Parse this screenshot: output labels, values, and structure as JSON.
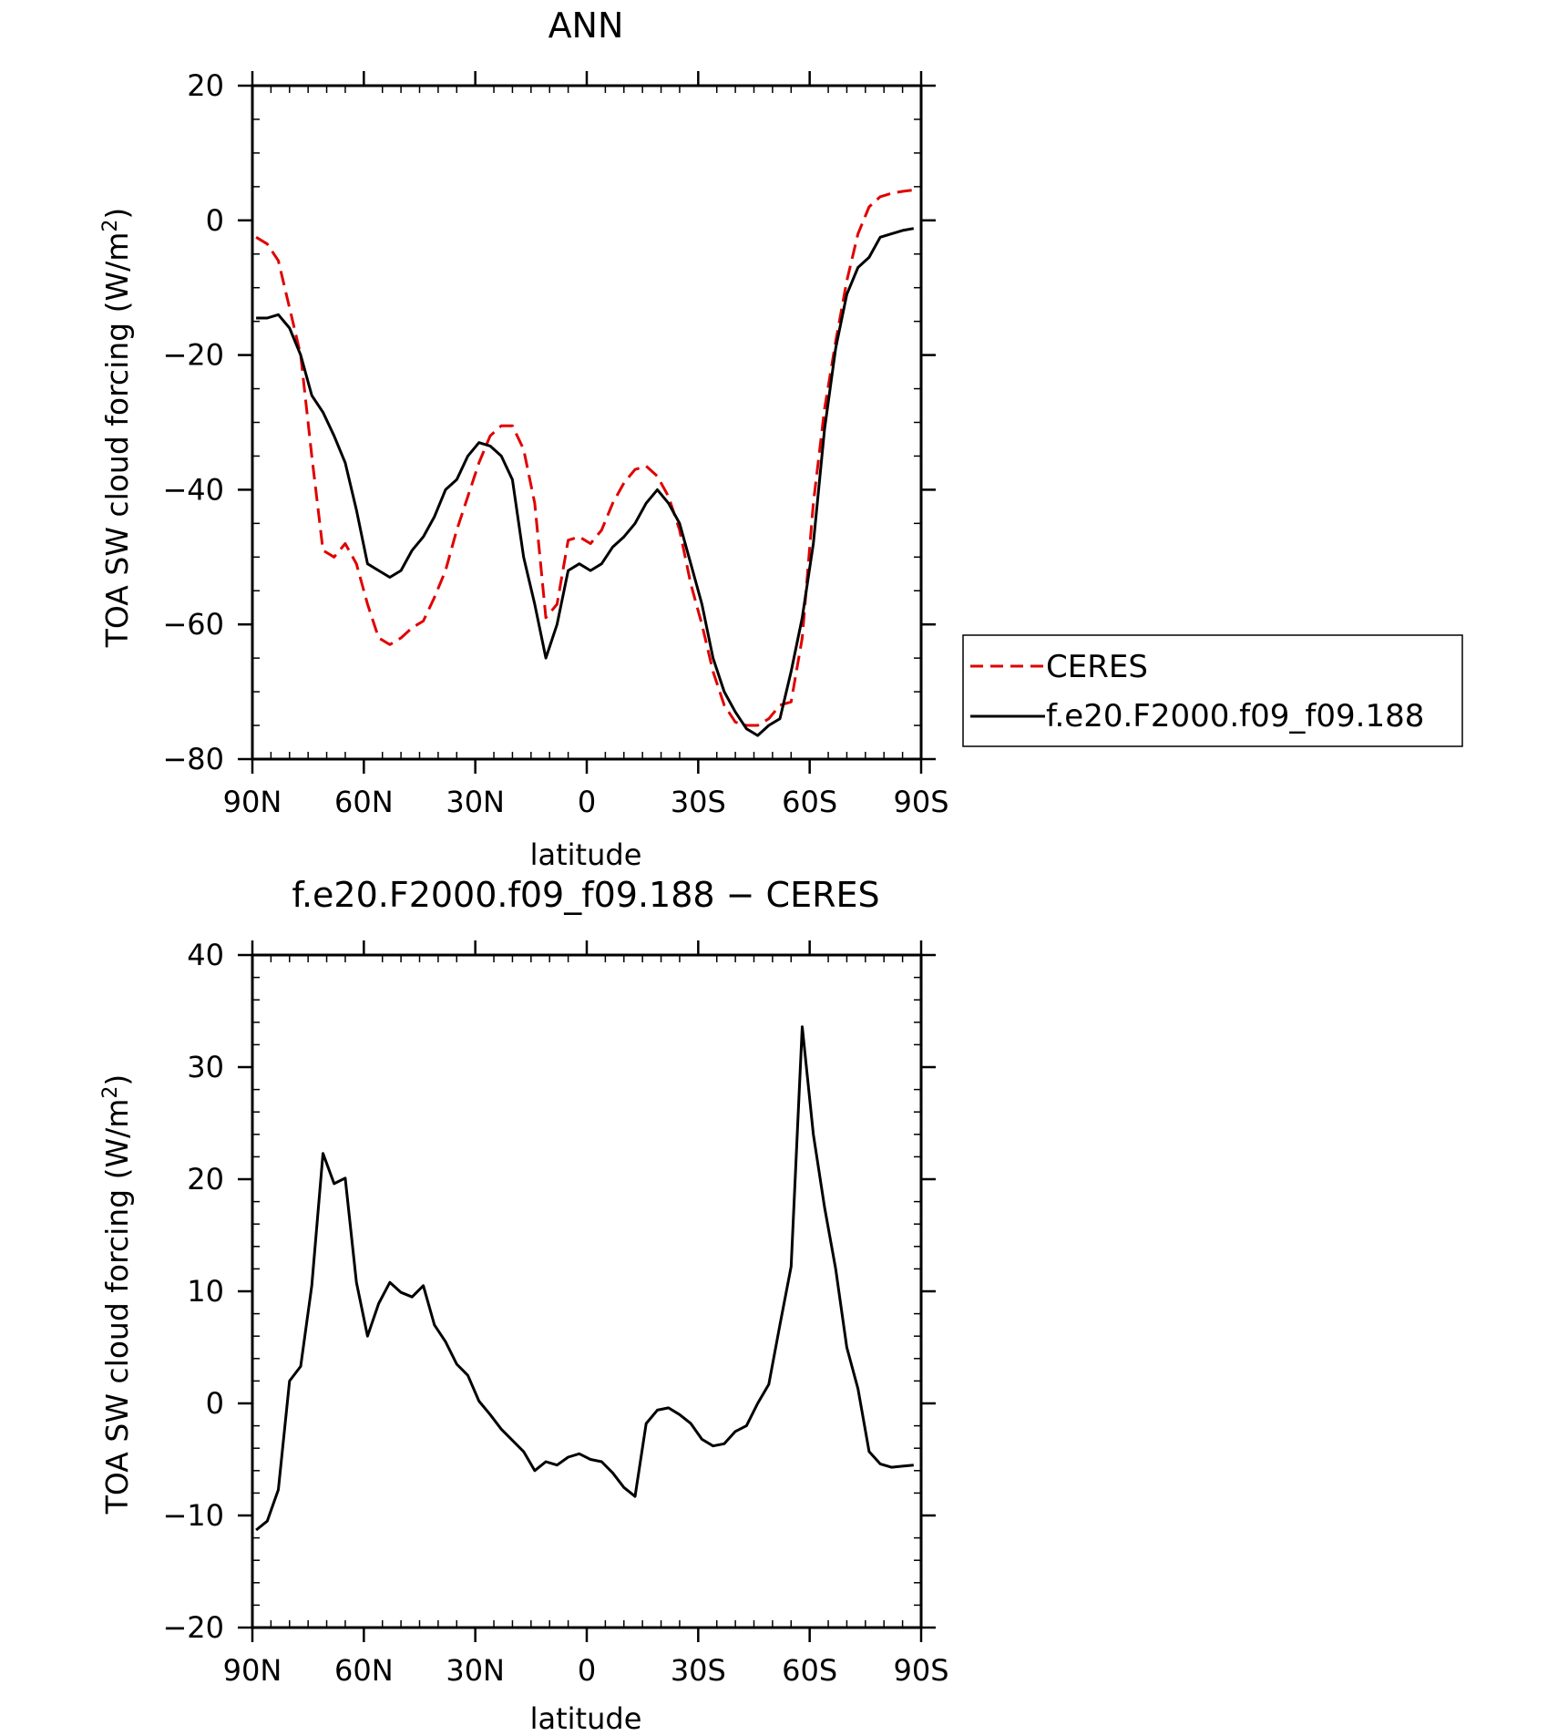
{
  "chart_data": [
    {
      "type": "line",
      "title": "ANN",
      "xlabel": "latitude",
      "ylabel_main": "TOA SW cloud forcing (W/m",
      "ylabel_sup": "2",
      "ylabel_close": ")",
      "xlim": [
        90,
        -90
      ],
      "ylim": [
        -80,
        20
      ],
      "xticks": [
        {
          "value": 90,
          "label": "90N"
        },
        {
          "value": 60,
          "label": "60N"
        },
        {
          "value": 30,
          "label": "30N"
        },
        {
          "value": 0,
          "label": "0"
        },
        {
          "value": -30,
          "label": "30S"
        },
        {
          "value": -60,
          "label": "60S"
        },
        {
          "value": -90,
          "label": "90S"
        }
      ],
      "yticks": [
        {
          "value": 20,
          "label": "20"
        },
        {
          "value": 0,
          "label": "0"
        },
        {
          "value": -20,
          "label": "−20"
        },
        {
          "value": -40,
          "label": "−40"
        },
        {
          "value": -60,
          "label": "−60"
        },
        {
          "value": -80,
          "label": "−80"
        }
      ],
      "grid": false,
      "legend_position": "right",
      "series": [
        {
          "name": "CERES",
          "color": "#e00000",
          "dash": "dashed",
          "x": [
            89,
            86,
            83,
            80,
            77,
            74,
            71,
            68,
            65,
            62,
            59,
            56,
            53,
            50,
            47,
            44,
            41,
            38,
            35,
            32,
            29,
            26,
            23,
            20,
            17,
            14,
            11,
            8,
            5,
            2,
            -1,
            -4,
            -7,
            -10,
            -13,
            -16,
            -19,
            -22,
            -25,
            -28,
            -31,
            -34,
            -37,
            -40,
            -43,
            -46,
            -49,
            -52,
            -55,
            -58,
            -61,
            -64,
            -67,
            -70,
            -73,
            -76,
            -79,
            -82,
            -85,
            -88
          ],
          "y": [
            -2.5,
            -3.5,
            -6,
            -13,
            -20,
            -35,
            -49,
            -50,
            -48,
            -51,
            -57,
            -62,
            -63,
            -62,
            -60.5,
            -59.5,
            -56,
            -52,
            -46,
            -41,
            -36,
            -32,
            -30.5,
            -30.5,
            -34,
            -42,
            -59,
            -57,
            -47.5,
            -47,
            -48,
            -46,
            -42,
            -39,
            -37,
            -36.5,
            -38,
            -41,
            -46,
            -54,
            -60,
            -67,
            -72,
            -74.5,
            -75,
            -75,
            -74,
            -72,
            -71.5,
            -62,
            -42,
            -28,
            -18,
            -9,
            -2,
            2,
            3.5,
            4,
            4.3,
            4.5
          ]
        },
        {
          "name": "f.e20.F2000.f09_f09.188",
          "color": "#000000",
          "dash": "solid",
          "x": [
            89,
            86,
            83,
            80,
            77,
            74,
            71,
            68,
            65,
            62,
            59,
            56,
            53,
            50,
            47,
            44,
            41,
            38,
            35,
            32,
            29,
            26,
            23,
            20,
            17,
            14,
            11,
            8,
            5,
            2,
            -1,
            -4,
            -7,
            -10,
            -13,
            -16,
            -19,
            -22,
            -25,
            -28,
            -31,
            -34,
            -37,
            -40,
            -43,
            -46,
            -49,
            -52,
            -55,
            -58,
            -61,
            -64,
            -67,
            -70,
            -73,
            -76,
            -79,
            -82,
            -85,
            -88
          ],
          "y": [
            -14.5,
            -14.5,
            -14,
            -16,
            -20,
            -26,
            -28.5,
            -32,
            -36,
            -43,
            -51,
            -52,
            -53,
            -52,
            -49,
            -47,
            -44,
            -40,
            -38.5,
            -35,
            -33,
            -33.5,
            -35,
            -38.5,
            -50,
            -57,
            -65,
            -60,
            -52,
            -51,
            -52,
            -51,
            -48.5,
            -47,
            -45,
            -42,
            -40,
            -42,
            -45,
            -51,
            -57,
            -65,
            -70,
            -73,
            -75.5,
            -76.5,
            -75,
            -74,
            -67,
            -59,
            -48,
            -31,
            -19,
            -11,
            -7,
            -5.5,
            -2.5,
            -2,
            -1.5,
            -1.2
          ]
        }
      ]
    },
    {
      "type": "line",
      "title": "f.e20.F2000.f09_f09.188 − CERES",
      "xlabel": "latitude",
      "ylabel_main": "TOA SW cloud forcing (W/m",
      "ylabel_sup": "2",
      "ylabel_close": ")",
      "xlim": [
        90,
        -90
      ],
      "ylim": [
        -20,
        40
      ],
      "xticks": [
        {
          "value": 90,
          "label": "90N"
        },
        {
          "value": 60,
          "label": "60N"
        },
        {
          "value": 30,
          "label": "30N"
        },
        {
          "value": 0,
          "label": "0"
        },
        {
          "value": -30,
          "label": "30S"
        },
        {
          "value": -60,
          "label": "60S"
        },
        {
          "value": -90,
          "label": "90S"
        }
      ],
      "yticks": [
        {
          "value": 40,
          "label": "40"
        },
        {
          "value": 30,
          "label": "30"
        },
        {
          "value": 20,
          "label": "20"
        },
        {
          "value": 10,
          "label": "10"
        },
        {
          "value": 0,
          "label": "0"
        },
        {
          "value": -10,
          "label": "−10"
        },
        {
          "value": -20,
          "label": "−20"
        }
      ],
      "grid": false,
      "series": [
        {
          "color": "#000000",
          "dash": "solid",
          "x": [
            89,
            86,
            83,
            80,
            77,
            74,
            71,
            68,
            65,
            62,
            59,
            56,
            53,
            50,
            47,
            44,
            41,
            38,
            35,
            32,
            29,
            26,
            23,
            20,
            17,
            14,
            11,
            8,
            5,
            2,
            -1,
            -4,
            -7,
            -10,
            -13,
            -16,
            -19,
            -22,
            -25,
            -28,
            -31,
            -34,
            -37,
            -40,
            -43,
            -46,
            -49,
            -52,
            -55,
            -58,
            -61,
            -64,
            -67,
            -70,
            -73,
            -76,
            -79,
            -82,
            -85,
            -88
          ],
          "y": [
            -11.3,
            -10.5,
            -7.7,
            2,
            3.3,
            10.5,
            22.3,
            19.6,
            20.1,
            10.8,
            6,
            8.9,
            10.8,
            9.9,
            9.5,
            10.5,
            7,
            5.5,
            3.5,
            2.5,
            0.2,
            -1,
            -2.3,
            -3.3,
            -4.3,
            -6,
            -5.2,
            -5.5,
            -4.8,
            -4.5,
            -5,
            -5.2,
            -6.2,
            -7.5,
            -8.3,
            -1.8,
            -0.6,
            -0.4,
            -1,
            -1.8,
            -3.2,
            -3.8,
            -3.6,
            -2.5,
            -2,
            0,
            1.7,
            7,
            12.2,
            33.6,
            24,
            17.5,
            12,
            5,
            1.3,
            -4.3,
            -5.4,
            -5.7,
            -5.6,
            -5.5
          ]
        }
      ]
    }
  ]
}
